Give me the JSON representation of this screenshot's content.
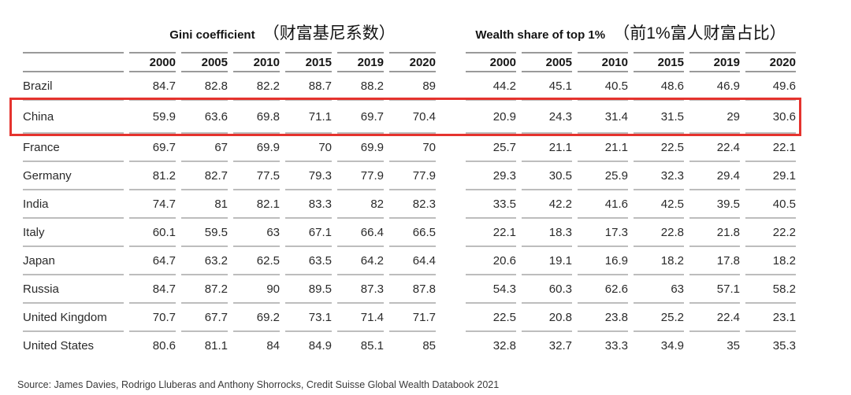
{
  "chart_data": {
    "type": "table",
    "groups": [
      {
        "title_en": "Gini coefficient",
        "title_zh": "（财富基尼系数）"
      },
      {
        "title_en": "Wealth share of top 1%",
        "title_zh": "（前1%富人财富占比）"
      }
    ],
    "years": [
      "2000",
      "2005",
      "2010",
      "2015",
      "2019",
      "2020"
    ],
    "rows": [
      {
        "country": "Brazil",
        "gini": [
          84.7,
          82.8,
          82.2,
          88.7,
          88.2,
          89
        ],
        "wealth": [
          44.2,
          45.1,
          40.5,
          48.6,
          46.9,
          49.6
        ]
      },
      {
        "country": "China",
        "gini": [
          59.9,
          63.6,
          69.8,
          71.1,
          69.7,
          70.4
        ],
        "wealth": [
          20.9,
          24.3,
          31.4,
          31.5,
          29,
          30.6
        ]
      },
      {
        "country": "France",
        "gini": [
          69.7,
          67,
          69.9,
          70,
          69.9,
          70
        ],
        "wealth": [
          25.7,
          21.1,
          21.1,
          22.5,
          22.4,
          22.1
        ]
      },
      {
        "country": "Germany",
        "gini": [
          81.2,
          82.7,
          77.5,
          79.3,
          77.9,
          77.9
        ],
        "wealth": [
          29.3,
          30.5,
          25.9,
          32.3,
          29.4,
          29.1
        ]
      },
      {
        "country": "India",
        "gini": [
          74.7,
          81,
          82.1,
          83.3,
          82,
          82.3
        ],
        "wealth": [
          33.5,
          42.2,
          41.6,
          42.5,
          39.5,
          40.5
        ]
      },
      {
        "country": "Italy",
        "gini": [
          60.1,
          59.5,
          63,
          67.1,
          66.4,
          66.5
        ],
        "wealth": [
          22.1,
          18.3,
          17.3,
          22.8,
          21.8,
          22.2
        ]
      },
      {
        "country": "Japan",
        "gini": [
          64.7,
          63.2,
          62.5,
          63.5,
          64.2,
          64.4
        ],
        "wealth": [
          20.6,
          19.1,
          16.9,
          18.2,
          17.8,
          18.2
        ]
      },
      {
        "country": "Russia",
        "gini": [
          84.7,
          87.2,
          90,
          89.5,
          87.3,
          87.8
        ],
        "wealth": [
          54.3,
          60.3,
          62.6,
          63,
          57.1,
          58.2
        ]
      },
      {
        "country": "United Kingdom",
        "gini": [
          70.7,
          67.7,
          69.2,
          73.1,
          71.4,
          71.7
        ],
        "wealth": [
          22.5,
          20.8,
          23.8,
          25.2,
          22.4,
          23.1
        ]
      },
      {
        "country": "United States",
        "gini": [
          80.6,
          81.1,
          84,
          84.9,
          85.1,
          85
        ],
        "wealth": [
          32.8,
          32.7,
          33.3,
          34.9,
          35,
          35.3
        ]
      }
    ],
    "highlighted_country": "China",
    "highlight_color": "#e5332e"
  },
  "source": "Source: James Davies, Rodrigo Lluberas and Anthony Shorrocks, Credit Suisse Global Wealth Databook 2021"
}
